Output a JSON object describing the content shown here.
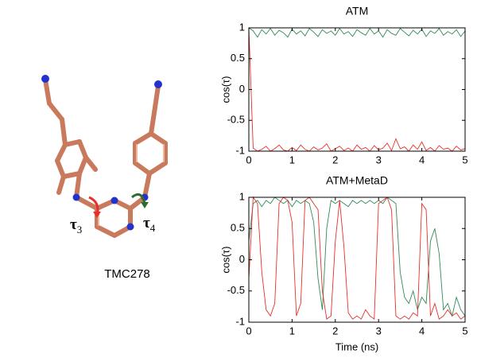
{
  "molecule": {
    "label": "TMC278",
    "torsions": [
      {
        "symbol": "τ",
        "subscript": "3"
      },
      {
        "symbol": "τ",
        "subscript": "4"
      }
    ]
  },
  "chart_data": [
    {
      "type": "line",
      "title": "ATM",
      "ylabel": "cos(τ)",
      "x": [
        0,
        0.1,
        0.2,
        0.3,
        0.4,
        0.5,
        0.6,
        0.7,
        0.8,
        0.9,
        1,
        1.1,
        1.2,
        1.3,
        1.4,
        1.5,
        1.6,
        1.7,
        1.8,
        1.9,
        2,
        2.1,
        2.2,
        2.3,
        2.4,
        2.5,
        2.6,
        2.7,
        2.8,
        2.9,
        3,
        3.1,
        3.2,
        3.3,
        3.4,
        3.5,
        3.6,
        3.7,
        3.8,
        3.9,
        4,
        4.1,
        4.2,
        4.3,
        4.4,
        4.5,
        4.6,
        4.7,
        4.8,
        4.9,
        5
      ],
      "series": [
        {
          "color": "#2e8b57",
          "values": [
            1,
            0.95,
            0.85,
            0.97,
            0.9,
            0.99,
            0.88,
            0.96,
            0.92,
            0.85,
            0.98,
            0.9,
            0.95,
            0.87,
            0.99,
            0.93,
            0.86,
            0.97,
            0.91,
            0.95,
            0.88,
            0.99,
            0.9,
            0.94,
            0.86,
            0.97,
            0.92,
            0.88,
            0.99,
            0.9,
            0.95,
            0.85,
            0.97,
            0.91,
            0.88,
            0.99,
            0.93,
            0.87,
            0.96,
            0.9,
            0.98,
            0.86,
            0.95,
            0.91,
            0.99,
            0.88,
            0.94,
            0.9,
            0.97,
            0.86,
            0.95
          ]
        },
        {
          "color": "#e8302a",
          "values": [
            1,
            -0.95,
            -1,
            -0.97,
            -0.92,
            -1,
            -0.96,
            -0.9,
            -0.98,
            -1,
            -0.94,
            -0.99,
            -0.9,
            -0.97,
            -1,
            -0.93,
            -0.98,
            -0.95,
            -0.88,
            -1,
            -0.96,
            -0.92,
            -0.99,
            -0.95,
            -1,
            -0.9,
            -0.97,
            -0.94,
            -1,
            -0.91,
            -0.98,
            -0.95,
            -0.87,
            -0.99,
            -0.8,
            -0.96,
            -0.93,
            -1,
            -0.9,
            -0.97,
            -0.85,
            -0.99,
            -0.94,
            -1,
            -0.91,
            -0.97,
            -0.95,
            -1,
            -0.92,
            -0.98,
            -0.96
          ]
        }
      ],
      "xlim": [
        0,
        5
      ],
      "ylim": [
        -1,
        1
      ],
      "xticks": [
        0,
        1,
        2,
        3,
        4,
        5
      ],
      "yticks": [
        -1,
        -0.5,
        0,
        0.5,
        1
      ]
    },
    {
      "type": "line",
      "title": "ATM+MetaD",
      "ylabel": "cos(τ)",
      "xlabel": "Time (ns)",
      "x": [
        0,
        0.1,
        0.2,
        0.3,
        0.4,
        0.5,
        0.6,
        0.7,
        0.8,
        0.9,
        1,
        1.1,
        1.2,
        1.3,
        1.4,
        1.5,
        1.6,
        1.7,
        1.8,
        1.9,
        2,
        2.1,
        2.2,
        2.3,
        2.4,
        2.5,
        2.6,
        2.7,
        2.8,
        2.9,
        3,
        3.1,
        3.2,
        3.3,
        3.4,
        3.5,
        3.6,
        3.7,
        3.8,
        3.9,
        4,
        4.1,
        4.2,
        4.3,
        4.4,
        4.5,
        4.6,
        4.7,
        4.8,
        4.9,
        5
      ],
      "series": [
        {
          "color": "#2e8b57",
          "values": [
            0.3,
            0.9,
            0.95,
            0.85,
            0.95,
            0.9,
            1,
            0.95,
            0.9,
            0.95,
            0.85,
            0.95,
            0.9,
            0.95,
            0.9,
            0.6,
            -0.3,
            -0.8,
            0.5,
            0.95,
            0.9,
            0.95,
            0.9,
            0.85,
            0.95,
            0.9,
            0.95,
            0.9,
            0.95,
            0.9,
            0.95,
            0.9,
            1,
            0.95,
            0.9,
            -0.2,
            -0.6,
            -0.7,
            -0.5,
            -0.8,
            -0.6,
            -0.7,
            0.3,
            0.5,
            0.1,
            -0.8,
            -0.7,
            -0.9,
            -0.6,
            -0.8,
            -0.9
          ]
        },
        {
          "color": "#e8302a",
          "values": [
            -0.3,
            1,
            0.9,
            -0.2,
            -0.8,
            -0.9,
            -0.7,
            0.9,
            1,
            0.95,
            0.6,
            -0.9,
            -0.7,
            0.95,
            1,
            0.9,
            0.8,
            -0.5,
            -0.95,
            -0.9,
            0.3,
            0.95,
            0.2,
            -0.85,
            -0.95,
            -0.9,
            -0.95,
            -0.8,
            -0.9,
            -0.95,
            0.9,
            0.95,
            1,
            0.8,
            -0.9,
            -0.95,
            -0.9,
            -0.95,
            -0.85,
            -0.9,
            0.9,
            0.8,
            -0.9,
            -0.7,
            -0.95,
            -0.9,
            -0.8,
            -0.9,
            -0.85,
            -0.95,
            -0.9
          ]
        }
      ],
      "xlim": [
        0,
        5
      ],
      "ylim": [
        -1,
        1
      ],
      "xticks": [
        0,
        1,
        2,
        3,
        4,
        5
      ],
      "yticks": [
        -1,
        -0.5,
        0,
        0.5,
        1
      ]
    }
  ]
}
